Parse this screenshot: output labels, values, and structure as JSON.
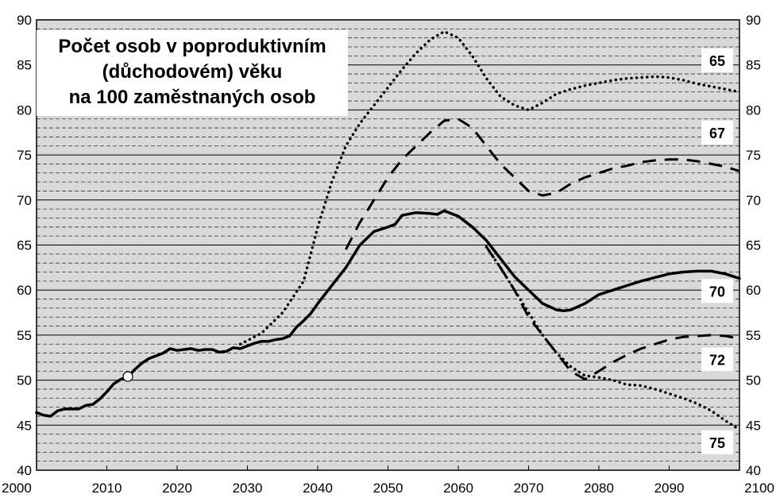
{
  "chart_data": {
    "type": "line",
    "title": "Počet osob v poproduktivním (důchodovém) věku na 100 zaměstnaných osob",
    "title_lines": [
      "Počet osob v poproduktivním",
      "(důchodovém) věku",
      "na 100 zaměstnaných osob"
    ],
    "xlim": [
      2000,
      2100
    ],
    "ylim": [
      40,
      90
    ],
    "x_ticks": [
      2000,
      2010,
      2020,
      2030,
      2040,
      2050,
      2060,
      2070,
      2080,
      2090,
      2100
    ],
    "y_ticks": [
      40,
      45,
      50,
      55,
      60,
      65,
      70,
      75,
      80,
      85,
      90
    ],
    "grid": "horizontal dashed every 1 unit, solid every 5",
    "background_color": "#d9d9d9",
    "marker": {
      "x": 2013,
      "y": 50.4,
      "style": "open circle"
    },
    "series": [
      {
        "name": "65",
        "style": "dotted",
        "x": [
          2029,
          2032,
          2035,
          2038,
          2040,
          2042,
          2044,
          2046,
          2048,
          2050,
          2052,
          2054,
          2056,
          2058,
          2060,
          2062,
          2064,
          2066,
          2068,
          2070,
          2072,
          2074,
          2076,
          2078,
          2080,
          2082,
          2084,
          2086,
          2088,
          2090,
          2092,
          2094,
          2096,
          2098,
          2100
        ],
        "y": [
          54.0,
          55.2,
          57.5,
          61.0,
          67.0,
          72.0,
          76.0,
          78.5,
          80.5,
          82.5,
          84.5,
          86.3,
          87.8,
          88.7,
          88.0,
          86.0,
          83.5,
          81.5,
          80.5,
          80.0,
          80.8,
          81.8,
          82.3,
          82.7,
          83.0,
          83.3,
          83.5,
          83.6,
          83.7,
          83.6,
          83.3,
          82.9,
          82.6,
          82.3,
          82.0
        ]
      },
      {
        "name": "67",
        "style": "dashed",
        "x": [
          2044,
          2046,
          2048,
          2050,
          2052,
          2054,
          2056,
          2058,
          2060,
          2062,
          2064,
          2066,
          2068,
          2070,
          2072,
          2074,
          2076,
          2078,
          2080,
          2082,
          2084,
          2086,
          2088,
          2090,
          2092,
          2094,
          2096,
          2098,
          2100
        ],
        "y": [
          64.5,
          67.5,
          70.0,
          72.5,
          74.5,
          76.0,
          77.5,
          78.8,
          79.0,
          78.0,
          76.0,
          74.0,
          72.5,
          71.0,
          70.5,
          70.8,
          71.8,
          72.5,
          73.0,
          73.5,
          73.8,
          74.2,
          74.4,
          74.5,
          74.5,
          74.3,
          74.0,
          73.7,
          73.2
        ]
      },
      {
        "name": "70",
        "style": "solid",
        "x": [
          2000,
          2001,
          2002,
          2003,
          2004,
          2005,
          2006,
          2007,
          2008,
          2009,
          2010,
          2011,
          2012,
          2013,
          2014,
          2015,
          2016,
          2017,
          2018,
          2019,
          2020,
          2021,
          2022,
          2023,
          2024,
          2025,
          2026,
          2027,
          2028,
          2029,
          2030,
          2031,
          2032,
          2033,
          2034,
          2035,
          2036,
          2037,
          2038,
          2039,
          2040,
          2042,
          2044,
          2046,
          2048,
          2050,
          2051,
          2052,
          2054,
          2056,
          2057,
          2058,
          2060,
          2062,
          2064,
          2066,
          2068,
          2070,
          2072,
          2074,
          2075,
          2076,
          2078,
          2080,
          2082,
          2084,
          2086,
          2088,
          2090,
          2092,
          2094,
          2096,
          2098,
          2100
        ],
        "y": [
          46.4,
          46.1,
          46.0,
          46.6,
          46.8,
          46.8,
          46.8,
          47.2,
          47.3,
          47.9,
          48.7,
          49.6,
          50.1,
          50.4,
          51.2,
          51.9,
          52.4,
          52.7,
          53.0,
          53.5,
          53.3,
          53.4,
          53.5,
          53.3,
          53.4,
          53.4,
          53.1,
          53.2,
          53.6,
          53.5,
          53.8,
          54.1,
          54.3,
          54.3,
          54.5,
          54.6,
          54.9,
          55.9,
          56.6,
          57.4,
          58.5,
          60.5,
          62.5,
          65.0,
          66.5,
          67.0,
          67.3,
          68.3,
          68.6,
          68.5,
          68.4,
          68.8,
          68.2,
          67.0,
          65.5,
          63.5,
          61.5,
          60.0,
          58.5,
          57.8,
          57.7,
          57.8,
          58.5,
          59.5,
          60.0,
          60.5,
          61.0,
          61.4,
          61.8,
          62.0,
          62.1,
          62.1,
          61.8,
          61.3
        ]
      },
      {
        "name": "72",
        "style": "dashed",
        "x": [
          2064,
          2066,
          2068,
          2070,
          2072,
          2074,
          2076,
          2078,
          2080,
          2082,
          2084,
          2086,
          2088,
          2090,
          2092,
          2094,
          2096,
          2098,
          2100
        ],
        "y": [
          64.8,
          62.5,
          60.0,
          57.0,
          55.0,
          53.0,
          51.0,
          50.1,
          51.0,
          52.0,
          52.8,
          53.5,
          54.0,
          54.5,
          54.8,
          54.9,
          55.0,
          54.9,
          54.6
        ]
      },
      {
        "name": "75",
        "style": "dotted",
        "x": [
          2064,
          2066,
          2068,
          2070,
          2072,
          2074,
          2076,
          2078,
          2080,
          2082,
          2084,
          2086,
          2088,
          2090,
          2092,
          2094,
          2096,
          2098,
          2100
        ],
        "y": [
          64.8,
          62.5,
          60.0,
          57.5,
          55.0,
          53.0,
          51.5,
          50.5,
          50.3,
          50.0,
          49.5,
          49.4,
          49.0,
          48.5,
          48.0,
          47.4,
          46.6,
          45.5,
          44.5
        ]
      }
    ],
    "end_labels": [
      {
        "text": "65",
        "at_y": 85.5
      },
      {
        "text": "67",
        "at_y": 77.5
      },
      {
        "text": "70",
        "at_y": 59.9
      },
      {
        "text": "72",
        "at_y": 52.3
      },
      {
        "text": "75",
        "at_y": 43.1
      }
    ]
  }
}
